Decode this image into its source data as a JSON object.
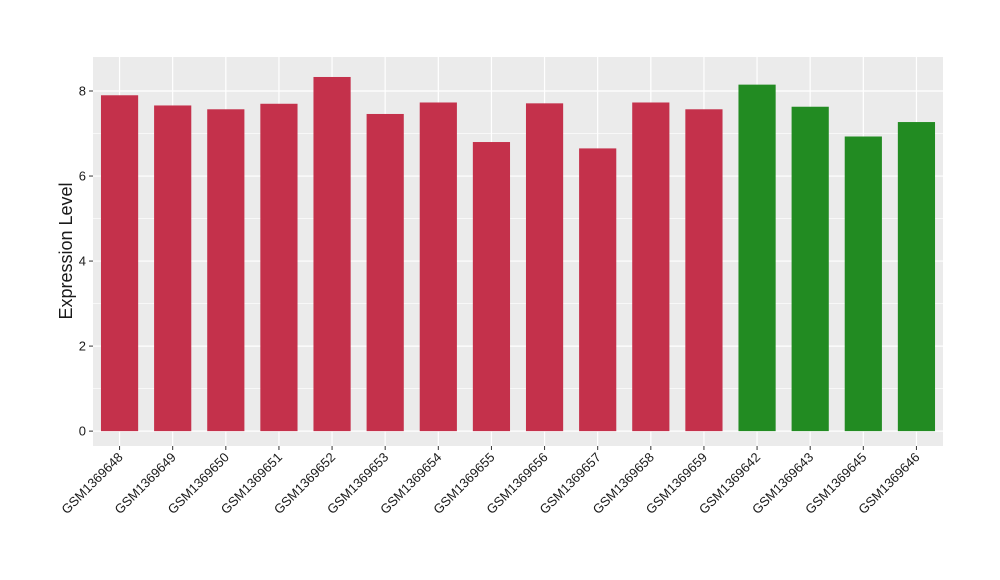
{
  "chart_data": {
    "type": "bar",
    "title": "",
    "xlabel": "",
    "ylabel": "Expression Level",
    "ylim": [
      -0.35,
      8.8
    ],
    "yticks": [
      0,
      2,
      4,
      6,
      8
    ],
    "grid": true,
    "categories": [
      "GSM1369648",
      "GSM1369649",
      "GSM1369650",
      "GSM1369651",
      "GSM1369652",
      "GSM1369653",
      "GSM1369654",
      "GSM1369655",
      "GSM1369656",
      "GSM1369657",
      "GSM1369658",
      "GSM1369659",
      "GSM1369642",
      "GSM1369643",
      "GSM1369645",
      "GSM1369646"
    ],
    "values": [
      7.9,
      7.66,
      7.57,
      7.7,
      8.33,
      7.46,
      7.73,
      6.8,
      7.71,
      6.65,
      7.73,
      7.57,
      8.15,
      7.63,
      6.93,
      7.27
    ],
    "groups": [
      "a",
      "a",
      "a",
      "a",
      "a",
      "a",
      "a",
      "a",
      "a",
      "a",
      "a",
      "a",
      "b",
      "b",
      "b",
      "b"
    ],
    "group_colors": {
      "a": "#c4314b",
      "b": "#228b22"
    },
    "panel_background": "#ebebeb",
    "gridline_color": "#ffffff"
  }
}
